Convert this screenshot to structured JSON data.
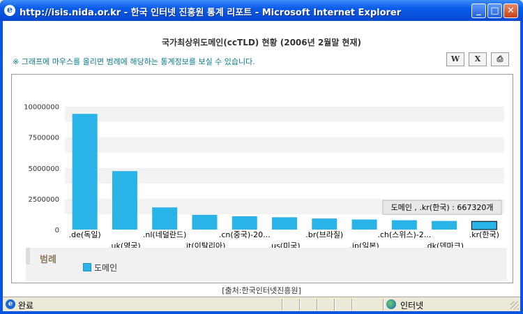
{
  "window": {
    "title": "http://isis.nida.or.kr - 한국 인터넷 진흥원 통계 리포트 - Microsoft Internet Explorer",
    "minimize": "_",
    "maximize": "□",
    "close": "✕"
  },
  "report": {
    "title": "국가최상위도메인(ccTLD) 현황 (2006년 2월말 현재)",
    "hint": "※ 그래프에 마우스를 올리면 범례에 해당하는 통계정보를 보실 수 있습니다.",
    "tools": {
      "word": "W",
      "excel": "X",
      "print": "⎙"
    },
    "legend_title": "범례",
    "legend_label": "도메인",
    "source": "[출처:한국인터넷진흥원]",
    "tooltip": "도메인 , .kr(한국) : 667320개"
  },
  "chart_data": {
    "type": "bar",
    "categories": [
      ".de(독일)",
      ".uk(영국)",
      ".nl(네덜란드)",
      ".it(이탈리아)",
      ".cn(중국)-20...",
      ".us(미국)",
      ".br(브라질)",
      ".jp(일본)",
      ".ch(스위스)-2...",
      ".dk(덴마크)",
      ".kr(한국)"
    ],
    "series": [
      {
        "name": "도메인",
        "values": [
          9400000,
          4750000,
          1800000,
          1200000,
          1080000,
          1000000,
          900000,
          820000,
          760000,
          700000,
          667320
        ]
      }
    ],
    "yticks": [
      "0",
      "2500000",
      "5000000",
      "7500000",
      "10000000"
    ],
    "ylim": [
      0,
      11000000
    ],
    "grid": true,
    "legend_position": "bottom-left",
    "colors": {
      "bar": "#2ab3e6",
      "highlight_border": "#000000"
    }
  },
  "status": {
    "text": "완료",
    "zone": "인터넷"
  }
}
